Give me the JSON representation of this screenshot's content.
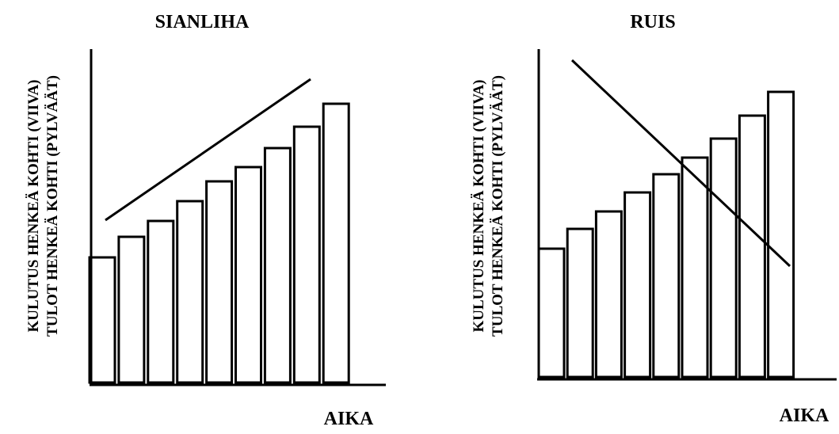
{
  "chart_data": [
    {
      "type": "bar",
      "title": "SIANLIHA",
      "ylabel_line1": "KULUTUS HENKEÄ KOHTI (VIIVA)",
      "ylabel_line2": "TULOT HENKEÄ KOHTI (PYLVÄÄT)",
      "xlabel": "AIKA",
      "series": [
        {
          "kind": "bar",
          "values": [
            158,
            184,
            204,
            229,
            254,
            272,
            296,
            323,
            352
          ]
        },
        {
          "kind": "line",
          "start": 205,
          "end": 383
        }
      ],
      "ylim": [
        0,
        420
      ]
    },
    {
      "type": "bar",
      "title": "RUIS",
      "ylabel_line1": "KULUTUS HENKEÄ KOHTI (VIIVA)",
      "ylabel_line2": "TULOT HENKEÄ KOHTI (PYLVÄÄT)",
      "xlabel": "AIKA",
      "series": [
        {
          "kind": "bar",
          "values": [
            162,
            187,
            209,
            233,
            256,
            277,
            301,
            330,
            360
          ]
        },
        {
          "kind": "line",
          "start": 400,
          "end": 140
        }
      ],
      "ylim": [
        0,
        420
      ]
    }
  ]
}
